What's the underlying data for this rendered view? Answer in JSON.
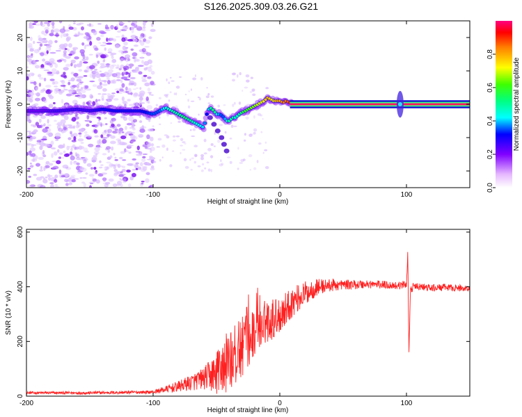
{
  "title": "S126.2025.309.03.26.G21",
  "chart_data": [
    {
      "type": "heatmap",
      "xlabel": "Height of straight line (km)",
      "ylabel": "Frequency (Hz)",
      "xlim": [
        -200,
        150
      ],
      "ylim": [
        -25,
        25
      ],
      "x_ticks": [
        -200,
        -100,
        0,
        100
      ],
      "x_tick_labels": [
        "-200",
        "-100",
        "0",
        "100"
      ],
      "y_ticks": [
        -20,
        -10,
        0,
        10,
        20
      ],
      "y_tick_labels": [
        "-20",
        "-10",
        "0",
        "10",
        "20"
      ],
      "colorbar": {
        "label": "Normalized spectral amplitude",
        "range": [
          0,
          1
        ],
        "ticks": [
          0.0,
          0.2,
          0.4,
          0.6,
          0.8
        ],
        "tick_labels": [
          "0.0",
          "0.2",
          "0.4",
          "0.6",
          "0.8"
        ]
      },
      "ridge": {
        "x": [
          -190,
          -175,
          -160,
          -150,
          -140,
          -130,
          -120,
          -110,
          -100,
          -95,
          -90,
          -85,
          -80,
          -75,
          -70,
          -65,
          -60,
          -57,
          -55,
          -52,
          -50,
          -47,
          -44,
          -42,
          -40,
          -37,
          -35,
          -32,
          -30,
          -27,
          -25,
          -22,
          -20,
          -17,
          -15,
          -12,
          -10,
          -7,
          -5,
          -2,
          0,
          3,
          5,
          8,
          10,
          15,
          20,
          30,
          40,
          50,
          60,
          70,
          80,
          90,
          100,
          110,
          120,
          130,
          140,
          150
        ],
        "y": [
          -2,
          -2,
          -1.5,
          -2,
          -1.5,
          -2,
          -2,
          -2,
          -3,
          -2,
          -1,
          -2,
          -3,
          -4,
          -5,
          -6,
          -7,
          -2,
          -1,
          -2,
          -3,
          -3,
          -4,
          -5,
          -5,
          -4,
          -4,
          -3,
          -2.5,
          -2,
          -1.5,
          -1,
          -0.5,
          0,
          0.5,
          1,
          2,
          1.5,
          1,
          1,
          1,
          0.5,
          1,
          0.5,
          0,
          0,
          0,
          0,
          0,
          0,
          0,
          0,
          0,
          0,
          0,
          0,
          0,
          0,
          0,
          0
        ],
        "amplitude": [
          0.2,
          0.25,
          0.25,
          0.25,
          0.3,
          0.3,
          0.3,
          0.3,
          0.35,
          0.35,
          0.45,
          0.5,
          0.5,
          0.55,
          0.5,
          0.45,
          0.4,
          0.3,
          0.5,
          0.55,
          0.45,
          0.35,
          0.35,
          0.45,
          0.5,
          0.5,
          0.45,
          0.5,
          0.55,
          0.6,
          0.6,
          0.65,
          0.65,
          0.7,
          0.7,
          0.75,
          0.8,
          0.75,
          0.75,
          0.8,
          0.8,
          0.85,
          0.85,
          0.9,
          0.9,
          0.9,
          0.9,
          0.9,
          0.9,
          0.9,
          0.9,
          0.9,
          0.9,
          0.9,
          0.9,
          0.9,
          0.9,
          0.9,
          0.9,
          0.9
        ]
      },
      "branch": {
        "x": [
          -55,
          -52,
          -49,
          -46,
          -44,
          -42
        ],
        "y": [
          -4,
          -6,
          -8,
          -10,
          -12,
          -14
        ]
      },
      "spike": {
        "x": 95,
        "y_range": [
          -4,
          4
        ]
      }
    },
    {
      "type": "line",
      "xlabel": "Height of straight line (km)",
      "ylabel": "SNR (10 * v/v)",
      "xlim": [
        -200,
        150
      ],
      "ylim": [
        0,
        610
      ],
      "x_ticks": [
        -200,
        -100,
        0,
        100
      ],
      "x_tick_labels": [
        "-200",
        "-100",
        "0",
        "100"
      ],
      "y_ticks": [
        0,
        200,
        400,
        600
      ],
      "y_tick_labels": [
        "0",
        "200",
        "400",
        "600"
      ],
      "series": [
        {
          "color": "#ff2020",
          "envelope": {
            "x": [
              -200,
              -150,
              -100,
              -90,
              -80,
              -70,
              -60,
              -50,
              -45,
              -40,
              -35,
              -30,
              -25,
              -20,
              -15,
              -10,
              -5,
              0,
              5,
              10,
              20,
              30,
              40,
              50,
              60,
              70,
              80,
              90,
              95,
              100,
              101,
              102,
              103,
              105,
              110,
              120,
              130,
              140,
              150
            ],
            "y": [
              12,
              12,
              15,
              25,
              35,
              50,
              65,
              85,
              110,
              130,
              150,
              180,
              205,
              240,
              260,
              275,
              285,
              300,
              320,
              345,
              375,
              400,
              405,
              408,
              408,
              410,
              408,
              405,
              405,
              410,
              520,
              160,
              380,
              400,
              400,
              395,
              398,
              395,
              395
            ]
          },
          "noise": {
            "x": [
              -200,
              -100,
              -80,
              -60,
              -50,
              -40,
              -30,
              -20,
              -10,
              0,
              10,
              20,
              30,
              50,
              80,
              150
            ],
            "amplitude": [
              5,
              6,
              20,
              40,
              80,
              120,
              110,
              90,
              80,
              70,
              55,
              45,
              30,
              18,
              15,
              12
            ]
          }
        }
      ]
    }
  ]
}
